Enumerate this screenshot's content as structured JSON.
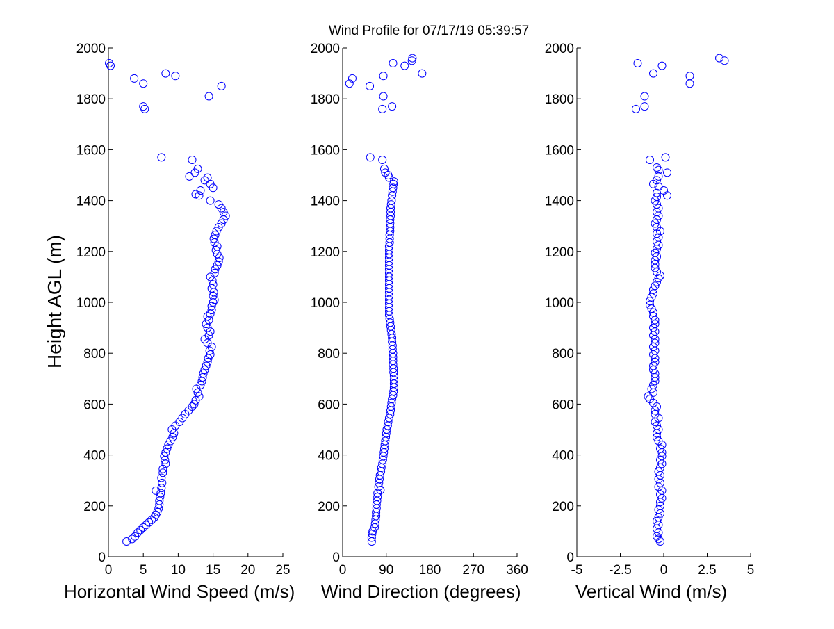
{
  "title": "Wind Profile for  07/17/19 05:39:57",
  "colors": {
    "marker": "#0000ff",
    "axis": "#000000",
    "background": "#ffffff"
  },
  "chart_data": [
    {
      "type": "scatter",
      "xlabel": "Horizontal Wind Speed (m/s)",
      "ylabel": "Height AGL (m)",
      "xlim": [
        0,
        25
      ],
      "ylim": [
        0,
        2000
      ],
      "xticks": [
        0,
        5,
        10,
        15,
        20,
        25
      ],
      "xtick_labels": [
        "0",
        "5",
        "10",
        "15",
        "20",
        "25"
      ],
      "yticks": [
        0,
        200,
        400,
        600,
        800,
        1000,
        1200,
        1400,
        1600,
        1800,
        2000
      ],
      "ytick_labels": [
        "0",
        "200",
        "400",
        "600",
        "800",
        "1000",
        "1200",
        "1400",
        "1600",
        "1800",
        "2000"
      ],
      "points": [
        [
          2.6,
          60
        ],
        [
          3.4,
          70
        ],
        [
          3.8,
          80
        ],
        [
          4.2,
          95
        ],
        [
          4.6,
          105
        ],
        [
          5,
          115
        ],
        [
          5.4,
          125
        ],
        [
          5.8,
          135
        ],
        [
          6.2,
          145
        ],
        [
          6.6,
          155
        ],
        [
          6.8,
          165
        ],
        [
          7,
          175
        ],
        [
          7.2,
          190
        ],
        [
          7.3,
          205
        ],
        [
          7.3,
          220
        ],
        [
          7.4,
          235
        ],
        [
          7.5,
          250
        ],
        [
          6.8,
          260
        ],
        [
          7.6,
          270
        ],
        [
          7.7,
          290
        ],
        [
          7.6,
          310
        ],
        [
          7.8,
          330
        ],
        [
          7.8,
          345
        ],
        [
          8.2,
          365
        ],
        [
          8.1,
          380
        ],
        [
          8,
          395
        ],
        [
          8.2,
          410
        ],
        [
          8.4,
          425
        ],
        [
          8.6,
          440
        ],
        [
          8.9,
          455
        ],
        [
          9.2,
          470
        ],
        [
          9.4,
          485
        ],
        [
          9.1,
          500
        ],
        [
          9.6,
          515
        ],
        [
          10.2,
          530
        ],
        [
          10.6,
          545
        ],
        [
          11,
          560
        ],
        [
          11.5,
          575
        ],
        [
          12,
          590
        ],
        [
          12.3,
          600
        ],
        [
          12.5,
          615
        ],
        [
          13,
          630
        ],
        [
          12.8,
          645
        ],
        [
          12.6,
          660
        ],
        [
          13.2,
          675
        ],
        [
          13.4,
          690
        ],
        [
          13.5,
          705
        ],
        [
          13.6,
          720
        ],
        [
          13.8,
          735
        ],
        [
          14,
          750
        ],
        [
          14.2,
          765
        ],
        [
          14.3,
          780
        ],
        [
          14.6,
          795
        ],
        [
          14.5,
          810
        ],
        [
          14.8,
          825
        ],
        [
          14.2,
          840
        ],
        [
          13.8,
          855
        ],
        [
          14.4,
          870
        ],
        [
          14.6,
          885
        ],
        [
          14.2,
          900
        ],
        [
          14,
          915
        ],
        [
          14.4,
          930
        ],
        [
          14.2,
          945
        ],
        [
          14.6,
          955
        ],
        [
          14.8,
          970
        ],
        [
          14.8,
          985
        ],
        [
          15,
          1000
        ],
        [
          15.2,
          1010
        ],
        [
          15,
          1025
        ],
        [
          15.1,
          1040
        ],
        [
          14.8,
          1055
        ],
        [
          15,
          1070
        ],
        [
          14.9,
          1085
        ],
        [
          14.6,
          1100
        ],
        [
          15.2,
          1115
        ],
        [
          15.3,
          1130
        ],
        [
          15.6,
          1145
        ],
        [
          15.8,
          1160
        ],
        [
          15.9,
          1175
        ],
        [
          15.6,
          1190
        ],
        [
          15.4,
          1205
        ],
        [
          15.6,
          1220
        ],
        [
          15.2,
          1235
        ],
        [
          15.1,
          1250
        ],
        [
          15.3,
          1265
        ],
        [
          15.5,
          1280
        ],
        [
          15.8,
          1295
        ],
        [
          16.2,
          1310
        ],
        [
          16.5,
          1325
        ],
        [
          16.8,
          1340
        ],
        [
          16.5,
          1355
        ],
        [
          16.2,
          1370
        ],
        [
          15.8,
          1385
        ],
        [
          14.6,
          1400
        ],
        [
          13,
          1420
        ],
        [
          12.5,
          1425
        ],
        [
          13.2,
          1440
        ],
        [
          15,
          1450
        ],
        [
          14.6,
          1465
        ],
        [
          13.8,
          1480
        ],
        [
          14.2,
          1490
        ],
        [
          11.6,
          1495
        ],
        [
          12.4,
          1510
        ],
        [
          12.8,
          1525
        ],
        [
          12,
          1560
        ],
        [
          7.6,
          1570
        ],
        [
          5.2,
          1760
        ],
        [
          5,
          1770
        ],
        [
          14.4,
          1810
        ],
        [
          16.2,
          1850
        ],
        [
          5,
          1860
        ],
        [
          3.7,
          1880
        ],
        [
          9.6,
          1890
        ],
        [
          8.2,
          1900
        ],
        [
          0.3,
          1930
        ],
        [
          0.1,
          1940
        ]
      ]
    },
    {
      "type": "scatter",
      "xlabel": "Wind Direction (degrees)",
      "xlim": [
        0,
        360
      ],
      "ylim": [
        0,
        2000
      ],
      "xticks": [
        0,
        90,
        180,
        270,
        360
      ],
      "xtick_labels": [
        "0",
        "90",
        "180",
        "270",
        "360"
      ],
      "yticks": [
        0,
        200,
        400,
        600,
        800,
        1000,
        1200,
        1400,
        1600,
        1800,
        2000
      ],
      "ytick_labels": [
        "0",
        "200",
        "400",
        "600",
        "800",
        "1000",
        "1200",
        "1400",
        "1600",
        "1800",
        "2000"
      ],
      "points": [
        [
          60,
          60
        ],
        [
          60,
          75
        ],
        [
          61,
          90
        ],
        [
          62,
          100
        ],
        [
          66,
          115
        ],
        [
          67,
          130
        ],
        [
          68,
          145
        ],
        [
          69,
          160
        ],
        [
          69,
          175
        ],
        [
          70,
          190
        ],
        [
          70,
          205
        ],
        [
          71,
          220
        ],
        [
          72,
          235
        ],
        [
          72,
          250
        ],
        [
          78,
          262
        ],
        [
          74,
          275
        ],
        [
          75,
          290
        ],
        [
          76,
          305
        ],
        [
          77,
          320
        ],
        [
          79,
          335
        ],
        [
          80,
          350
        ],
        [
          82,
          365
        ],
        [
          83,
          380
        ],
        [
          84,
          395
        ],
        [
          85,
          410
        ],
        [
          86,
          425
        ],
        [
          87,
          440
        ],
        [
          88,
          455
        ],
        [
          89,
          470
        ],
        [
          90,
          485
        ],
        [
          91,
          500
        ],
        [
          93,
          515
        ],
        [
          94,
          530
        ],
        [
          96,
          545
        ],
        [
          98,
          560
        ],
        [
          99,
          575
        ],
        [
          100,
          590
        ],
        [
          101,
          605
        ],
        [
          102,
          620
        ],
        [
          104,
          635
        ],
        [
          105,
          650
        ],
        [
          106,
          665
        ],
        [
          106,
          680
        ],
        [
          106,
          695
        ],
        [
          106,
          710
        ],
        [
          105,
          725
        ],
        [
          105,
          740
        ],
        [
          104,
          755
        ],
        [
          104,
          770
        ],
        [
          104,
          785
        ],
        [
          104,
          800
        ],
        [
          103,
          815
        ],
        [
          103,
          830
        ],
        [
          102,
          845
        ],
        [
          102,
          860
        ],
        [
          101,
          875
        ],
        [
          100,
          890
        ],
        [
          99,
          905
        ],
        [
          98,
          920
        ],
        [
          97,
          935
        ],
        [
          96,
          950
        ],
        [
          96,
          965
        ],
        [
          96,
          980
        ],
        [
          96,
          995
        ],
        [
          96,
          1010
        ],
        [
          96,
          1025
        ],
        [
          96,
          1040
        ],
        [
          96,
          1055
        ],
        [
          96,
          1070
        ],
        [
          96,
          1085
        ],
        [
          96,
          1100
        ],
        [
          96,
          1115
        ],
        [
          96,
          1130
        ],
        [
          96,
          1145
        ],
        [
          96,
          1160
        ],
        [
          96,
          1175
        ],
        [
          96,
          1190
        ],
        [
          96,
          1205
        ],
        [
          96,
          1220
        ],
        [
          97,
          1235
        ],
        [
          97,
          1250
        ],
        [
          97,
          1265
        ],
        [
          98,
          1280
        ],
        [
          98,
          1295
        ],
        [
          98,
          1310
        ],
        [
          98,
          1325
        ],
        [
          99,
          1340
        ],
        [
          99,
          1355
        ],
        [
          99,
          1370
        ],
        [
          100,
          1385
        ],
        [
          101,
          1400
        ],
        [
          102,
          1420
        ],
        [
          103,
          1435
        ],
        [
          104,
          1450
        ],
        [
          105,
          1465
        ],
        [
          106,
          1475
        ],
        [
          96,
          1490
        ],
        [
          94,
          1500
        ],
        [
          88,
          1510
        ],
        [
          86,
          1525
        ],
        [
          82,
          1560
        ],
        [
          57,
          1570
        ],
        [
          82,
          1760
        ],
        [
          102,
          1770
        ],
        [
          84,
          1810
        ],
        [
          56,
          1850
        ],
        [
          14,
          1860
        ],
        [
          20,
          1880
        ],
        [
          84,
          1890
        ],
        [
          164,
          1900
        ],
        [
          128,
          1930
        ],
        [
          104,
          1940
        ],
        [
          143,
          1950
        ],
        [
          144,
          1960
        ]
      ]
    },
    {
      "type": "scatter",
      "xlabel": "Vertical Wind (m/s)",
      "xlim": [
        -5,
        5
      ],
      "ylim": [
        0,
        2000
      ],
      "xticks": [
        -5,
        -2.5,
        0,
        2.5,
        5
      ],
      "xtick_labels": [
        "-5",
        "-2.5",
        "0",
        "2.5",
        "5"
      ],
      "yticks": [
        0,
        200,
        400,
        600,
        800,
        1000,
        1200,
        1400,
        1600,
        1800,
        2000
      ],
      "ytick_labels": [
        "0",
        "200",
        "400",
        "600",
        "800",
        "1000",
        "1200",
        "1400",
        "1600",
        "1800",
        "2000"
      ],
      "points": [
        [
          -0.2,
          60
        ],
        [
          -0.3,
          70
        ],
        [
          -0.4,
          80
        ],
        [
          -0.3,
          95
        ],
        [
          -0.4,
          110
        ],
        [
          -0.3,
          125
        ],
        [
          -0.4,
          140
        ],
        [
          -0.3,
          155
        ],
        [
          -0.2,
          170
        ],
        [
          -0.3,
          185
        ],
        [
          -0.2,
          200
        ],
        [
          -0.2,
          215
        ],
        [
          -0.1,
          230
        ],
        [
          -0.2,
          245
        ],
        [
          -0.1,
          260
        ],
        [
          -0.3,
          275
        ],
        [
          -0.2,
          290
        ],
        [
          -0.3,
          305
        ],
        [
          -0.2,
          320
        ],
        [
          -0.3,
          335
        ],
        [
          -0.2,
          350
        ],
        [
          -0.1,
          365
        ],
        [
          -0.2,
          380
        ],
        [
          -0.1,
          395
        ],
        [
          -0.1,
          410
        ],
        [
          -0.2,
          425
        ],
        [
          -0.1,
          440
        ],
        [
          -0.3,
          455
        ],
        [
          -0.4,
          470
        ],
        [
          -0.4,
          485
        ],
        [
          -0.3,
          500
        ],
        [
          -0.4,
          515
        ],
        [
          -0.5,
          530
        ],
        [
          -0.3,
          545
        ],
        [
          -0.5,
          560
        ],
        [
          -0.5,
          575
        ],
        [
          -0.4,
          590
        ],
        [
          -0.6,
          605
        ],
        [
          -0.8,
          620
        ],
        [
          -0.9,
          630
        ],
        [
          -0.6,
          645
        ],
        [
          -0.7,
          660
        ],
        [
          -0.6,
          675
        ],
        [
          -0.5,
          690
        ],
        [
          -0.5,
          705
        ],
        [
          -0.5,
          720
        ],
        [
          -0.6,
          735
        ],
        [
          -0.6,
          750
        ],
        [
          -0.5,
          765
        ],
        [
          -0.5,
          780
        ],
        [
          -0.6,
          795
        ],
        [
          -0.5,
          810
        ],
        [
          -0.6,
          825
        ],
        [
          -0.5,
          840
        ],
        [
          -0.5,
          855
        ],
        [
          -0.6,
          870
        ],
        [
          -0.5,
          885
        ],
        [
          -0.6,
          900
        ],
        [
          -0.5,
          915
        ],
        [
          -0.5,
          930
        ],
        [
          -0.6,
          945
        ],
        [
          -0.6,
          960
        ],
        [
          -0.7,
          975
        ],
        [
          -0.8,
          990
        ],
        [
          -0.8,
          1005
        ],
        [
          -0.7,
          1020
        ],
        [
          -0.6,
          1035
        ],
        [
          -0.6,
          1050
        ],
        [
          -0.5,
          1065
        ],
        [
          -0.4,
          1080
        ],
        [
          -0.3,
          1095
        ],
        [
          -0.2,
          1105
        ],
        [
          -0.4,
          1120
        ],
        [
          -0.5,
          1135
        ],
        [
          -0.5,
          1150
        ],
        [
          -0.5,
          1165
        ],
        [
          -0.4,
          1180
        ],
        [
          -0.5,
          1195
        ],
        [
          -0.4,
          1210
        ],
        [
          -0.3,
          1225
        ],
        [
          -0.4,
          1240
        ],
        [
          -0.3,
          1255
        ],
        [
          -0.4,
          1270
        ],
        [
          -0.2,
          1280
        ],
        [
          -0.4,
          1295
        ],
        [
          -0.5,
          1310
        ],
        [
          -0.4,
          1325
        ],
        [
          -0.3,
          1340
        ],
        [
          -0.4,
          1355
        ],
        [
          -0.3,
          1370
        ],
        [
          -0.4,
          1385
        ],
        [
          -0.5,
          1400
        ],
        [
          -0.4,
          1415
        ],
        [
          0.2,
          1420
        ],
        [
          -0.4,
          1430
        ],
        [
          0,
          1440
        ],
        [
          -0.3,
          1455
        ],
        [
          -0.6,
          1465
        ],
        [
          -0.4,
          1480
        ],
        [
          -0.3,
          1495
        ],
        [
          0.2,
          1510
        ],
        [
          -0.3,
          1520
        ],
        [
          -0.4,
          1530
        ],
        [
          -0.8,
          1560
        ],
        [
          0.1,
          1570
        ],
        [
          -1.6,
          1760
        ],
        [
          -1.1,
          1770
        ],
        [
          -1.1,
          1810
        ],
        [
          1.5,
          1860
        ],
        [
          1.5,
          1890
        ],
        [
          -0.6,
          1900
        ],
        [
          -0.1,
          1930
        ],
        [
          -1.5,
          1940
        ],
        [
          3.5,
          1950
        ],
        [
          3.2,
          1960
        ]
      ]
    }
  ]
}
